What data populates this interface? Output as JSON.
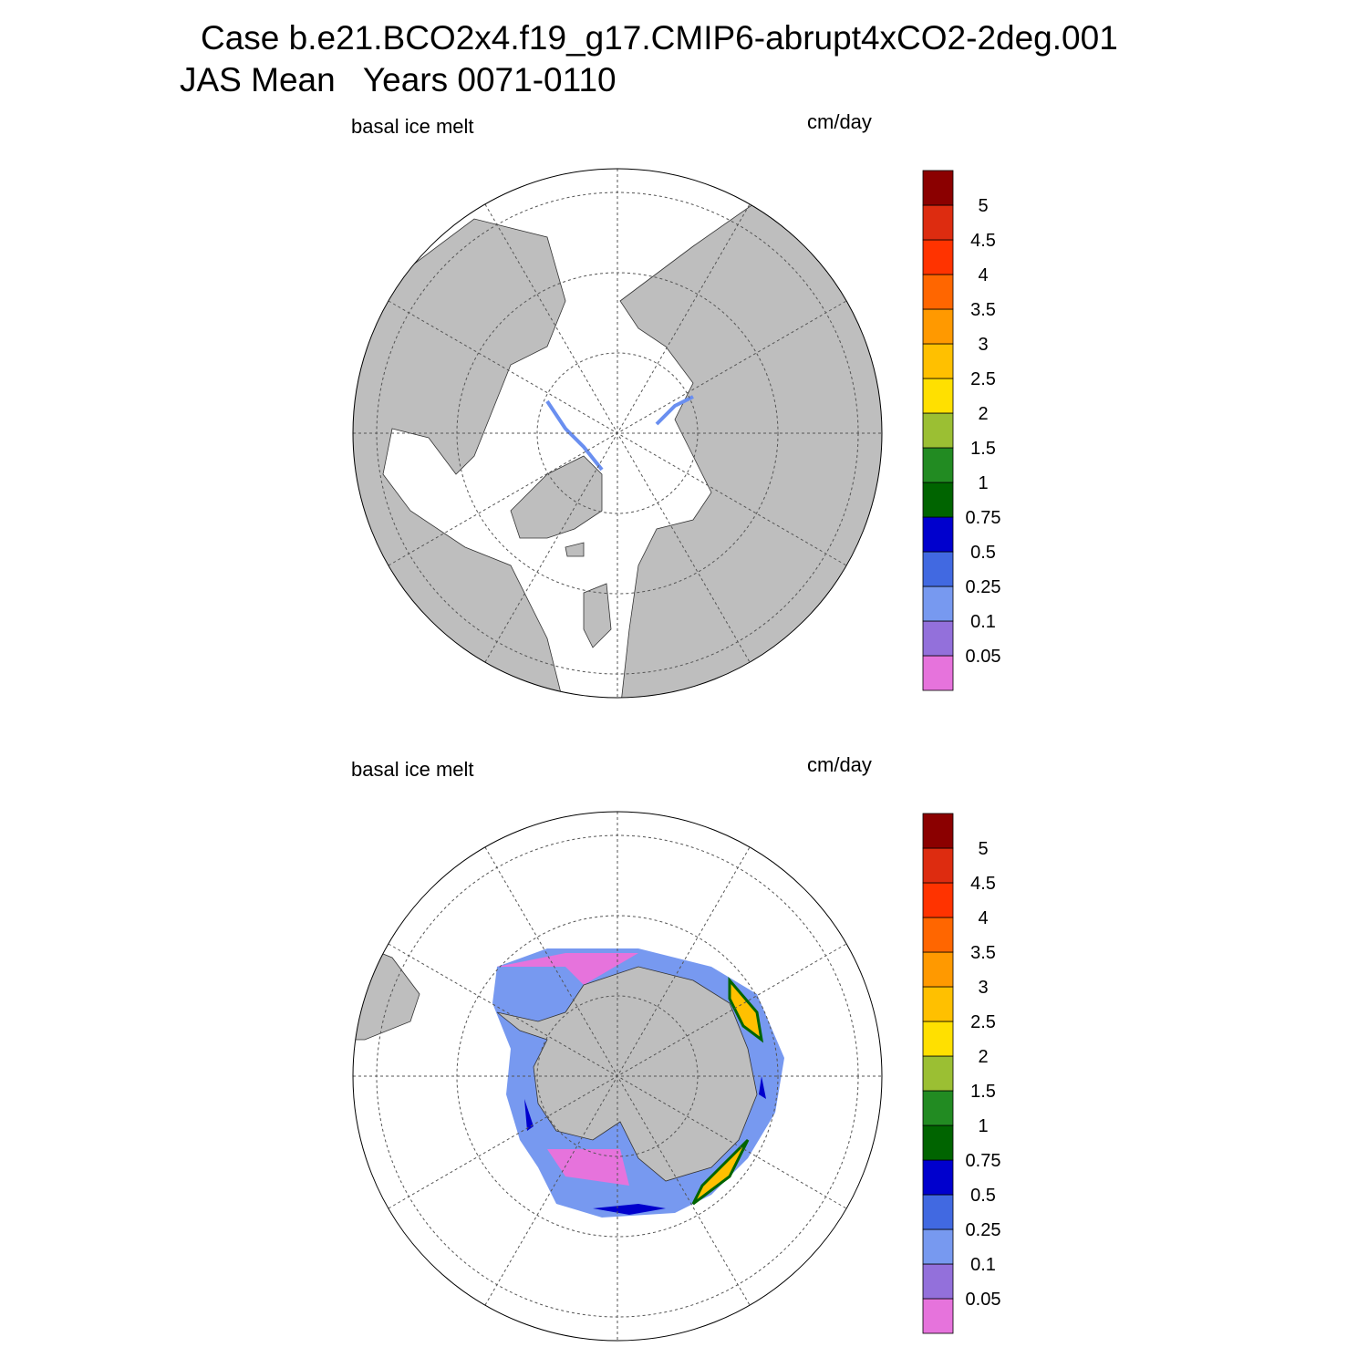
{
  "title": {
    "line1": "Case b.e21.BCO2x4.f19_g17.CMIP6-abrupt4xCO2-2deg.001",
    "line2": "JAS Mean   Years 0071-0110"
  },
  "panels": [
    {
      "label": "basal ice melt",
      "units": "cm/day"
    },
    {
      "label": "basal ice melt",
      "units": "cm/day"
    }
  ],
  "colorbar": {
    "levels": [
      0.05,
      0.1,
      0.25,
      0.5,
      0.75,
      1,
      1.5,
      2,
      2.5,
      3,
      3.5,
      4,
      4.5,
      5
    ],
    "colors": [
      "#e673dc",
      "#9370db",
      "#7799f0",
      "#4169e1",
      "#0000cd",
      "#006400",
      "#228b22",
      "#9bbf33",
      "#ffe000",
      "#ffc000",
      "#ff9900",
      "#ff6600",
      "#ff3300",
      "#dd2c10",
      "#8b0000"
    ]
  }
}
